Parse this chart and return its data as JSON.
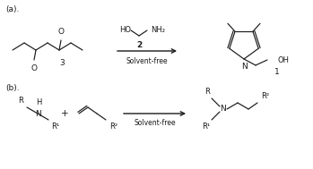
{
  "bg_color": "#ffffff",
  "line_color": "#1a1a1a",
  "label_a": "(a).",
  "label_b": "(b).",
  "solvent_free": "Solvent-free",
  "num_2": "2",
  "num_3": "3",
  "num_1": "1",
  "font_size": 6.5
}
